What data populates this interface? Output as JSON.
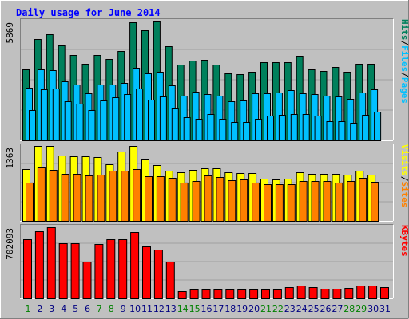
{
  "title": "Daily usage for June 2014",
  "colors": {
    "background": "#c0c0c0",
    "frame_light": "#ffffff",
    "frame_dark": "#808080",
    "plot_bg": "#c0c0c0",
    "gridline": "#a0a0a0",
    "title": "#0000ff",
    "hits": "#00805c",
    "files": "#00c0ff",
    "pages": "#00c0ff",
    "visits": "#ffff00",
    "sites": "#ff8000",
    "kbytes": "#ff0000",
    "weekend_day": "#008000",
    "weekday": "#000080",
    "bar_outline": "#000000"
  },
  "chart_data": [
    {
      "type": "bar",
      "panel": "top",
      "ymax_label": "5869",
      "ylim": [
        0,
        5869
      ],
      "categories": [
        "1",
        "2",
        "3",
        "4",
        "5",
        "6",
        "7",
        "8",
        "9",
        "10",
        "11",
        "12",
        "13",
        "14",
        "15",
        "16",
        "17",
        "18",
        "19",
        "20",
        "21",
        "22",
        "23",
        "24",
        "25",
        "26",
        "27",
        "28",
        "29",
        "30",
        "31"
      ],
      "series": [
        {
          "name": "Hits",
          "values": [
            3500,
            4950,
            5200,
            4650,
            4200,
            3750,
            4200,
            4000,
            4400,
            5800,
            5400,
            5850,
            4600,
            3700,
            3900,
            3950,
            3700,
            3300,
            3250,
            3350,
            3850,
            3850,
            3850,
            4150,
            3500,
            3400,
            3600,
            3350,
            3750,
            3750,
            null
          ]
        },
        {
          "name": "Files",
          "values": [
            2600,
            3500,
            3450,
            2900,
            2750,
            2300,
            2750,
            2750,
            2800,
            3550,
            3300,
            3350,
            2700,
            2200,
            2400,
            2250,
            2200,
            1900,
            1950,
            2300,
            2300,
            2350,
            2450,
            2300,
            2250,
            2200,
            2150,
            2050,
            2350,
            2500,
            null
          ]
        },
        {
          "name": "Pages",
          "values": [
            1500,
            2500,
            2550,
            1900,
            1800,
            1500,
            1950,
            2100,
            2250,
            2550,
            2000,
            2150,
            1550,
            1150,
            1050,
            1300,
            1050,
            900,
            900,
            1050,
            1200,
            1250,
            1300,
            1300,
            1200,
            950,
            950,
            850,
            1250,
            1400,
            null
          ]
        }
      ],
      "ylabel_parts": [
        "Pages",
        "Files",
        "Hits"
      ]
    },
    {
      "type": "bar",
      "panel": "middle",
      "ymax_label": "1363",
      "ylim": [
        0,
        1363
      ],
      "series": [
        {
          "name": "Visits",
          "values": [
            940,
            1360,
            1360,
            1190,
            1170,
            1170,
            1160,
            1030,
            1260,
            1360,
            1130,
            1020,
            920,
            880,
            930,
            960,
            960,
            890,
            870,
            870,
            770,
            760,
            770,
            880,
            860,
            850,
            850,
            840,
            920,
            840,
            null
          ]
        },
        {
          "name": "Sites",
          "values": [
            700,
            970,
            930,
            860,
            860,
            830,
            840,
            910,
            910,
            940,
            810,
            810,
            780,
            700,
            720,
            820,
            800,
            740,
            760,
            700,
            660,
            660,
            670,
            730,
            720,
            720,
            700,
            720,
            780,
            710,
            null
          ]
        }
      ],
      "ylabel_parts": [
        "Sites",
        "Visits"
      ]
    },
    {
      "type": "bar",
      "panel": "bottom",
      "ymax_label": "702093",
      "ylim": [
        0,
        702093
      ],
      "series": [
        {
          "name": "KBytes",
          "values": [
            580000,
            655000,
            695000,
            535000,
            535000,
            360000,
            530000,
            580000,
            580000,
            650000,
            505000,
            475000,
            360000,
            68000,
            85000,
            85000,
            85000,
            85000,
            85000,
            85000,
            85000,
            85000,
            108000,
            125000,
            110000,
            92000,
            92000,
            105000,
            125000,
            125000,
            112000
          ]
        }
      ],
      "ylabel_parts": [
        "KBytes"
      ]
    }
  ],
  "x_axis": {
    "days": [
      "1",
      "2",
      "3",
      "4",
      "5",
      "6",
      "7",
      "8",
      "9",
      "10",
      "11",
      "12",
      "13",
      "14",
      "15",
      "16",
      "17",
      "18",
      "19",
      "20",
      "21",
      "22",
      "23",
      "24",
      "25",
      "26",
      "27",
      "28",
      "29",
      "30",
      "31"
    ],
    "weekend_days": [
      "1",
      "7",
      "8",
      "14",
      "15",
      "21",
      "22",
      "28",
      "29"
    ]
  }
}
